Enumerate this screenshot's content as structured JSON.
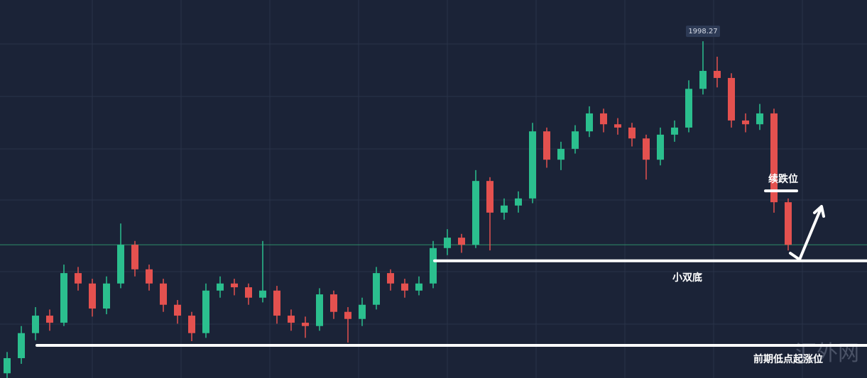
{
  "chart_data": {
    "type": "candlestick",
    "ylim": [
      1927,
      2007
    ],
    "up_color": "#2bbf8e",
    "down_color": "#e4514f",
    "open": [
      1928.0,
      1931.2,
      1936.5,
      1940.2,
      1938.7,
      1949.2,
      1947.0,
      1941.7,
      1947.0,
      1955.2,
      1950.0,
      1947.0,
      1942.5,
      1940.2,
      1936.5,
      1945.5,
      1947.0,
      1946.2,
      1944.0,
      1945.5,
      1940.2,
      1938.7,
      1938.0,
      1944.7,
      1941.0,
      1939.5,
      1942.5,
      1949.2,
      1947.0,
      1945.5,
      1947.0,
      1954.5,
      1956.7,
      1955.2,
      1968.7,
      1962.0,
      1963.5,
      1965.0,
      1979.2,
      1973.2,
      1975.5,
      1979.2,
      1983.0,
      1980.7,
      1980.0,
      1977.7,
      1973.2,
      1978.5,
      1980.0,
      1988.2,
      1992.0,
      1990.5,
      1981.5,
      1980.7,
      1983.0,
      1964.2
    ],
    "high": [
      1932.5,
      1938.0,
      1942.0,
      1941.5,
      1951.0,
      1950.5,
      1948.0,
      1948.5,
      1959.7,
      1956.0,
      1951.0,
      1948.0,
      1943.5,
      1941.0,
      1947.0,
      1948.5,
      1948.0,
      1947.0,
      1956.0,
      1946.5,
      1941.5,
      1940.0,
      1946.0,
      1945.5,
      1942.0,
      1944.0,
      1950.5,
      1950.0,
      1948.0,
      1948.5,
      1956.0,
      1958.5,
      1957.5,
      1971.0,
      1969.5,
      1965.0,
      1966.5,
      1981.0,
      1980.0,
      1977.0,
      1980.5,
      1984.5,
      1984.0,
      1982.0,
      1981.0,
      1978.5,
      1980.0,
      1981.5,
      1990.0,
      1998.27,
      1995.0,
      1991.5,
      1983.0,
      1985.0,
      1984.0,
      1965.0
    ],
    "low": [
      1926.5,
      1930.0,
      1935.0,
      1937.0,
      1938.0,
      1945.5,
      1940.0,
      1940.5,
      1946.0,
      1948.5,
      1945.5,
      1941.0,
      1938.5,
      1934.8,
      1935.5,
      1944.0,
      1944.5,
      1942.5,
      1943.0,
      1938.5,
      1937.0,
      1935.5,
      1937.0,
      1939.5,
      1934.5,
      1938.0,
      1941.5,
      1945.5,
      1944.0,
      1944.5,
      1946.0,
      1953.0,
      1953.5,
      1954.5,
      1954.0,
      1960.5,
      1962.0,
      1964.0,
      1971.5,
      1971.0,
      1974.5,
      1978.0,
      1979.0,
      1978.5,
      1976.0,
      1969.0,
      1972.0,
      1977.0,
      1979.0,
      1987.0,
      1988.5,
      1980.0,
      1979.0,
      1979.5,
      1962.0,
      1954.0
    ],
    "close": [
      1931.2,
      1936.5,
      1940.2,
      1938.7,
      1949.2,
      1947.0,
      1941.7,
      1947.0,
      1955.2,
      1950.0,
      1947.0,
      1942.5,
      1940.2,
      1936.5,
      1945.5,
      1947.0,
      1946.2,
      1944.0,
      1945.5,
      1940.2,
      1938.7,
      1938.0,
      1944.7,
      1941.0,
      1939.5,
      1942.5,
      1949.2,
      1947.0,
      1945.5,
      1947.0,
      1954.5,
      1956.7,
      1955.2,
      1968.7,
      1962.0,
      1963.5,
      1965.0,
      1979.2,
      1973.2,
      1975.5,
      1979.2,
      1983.0,
      1980.7,
      1980.0,
      1977.7,
      1973.2,
      1978.5,
      1980.0,
      1988.2,
      1992.0,
      1990.5,
      1981.5,
      1980.7,
      1983.0,
      1964.2,
      1955.2
    ],
    "levels": [
      {
        "label": "续跌位",
        "value": 1966.6
      },
      {
        "label": "小双底",
        "value": 1951.8
      },
      {
        "label": "前期低点起涨位",
        "value": 1933.9
      }
    ],
    "watermark": "汇外网"
  }
}
